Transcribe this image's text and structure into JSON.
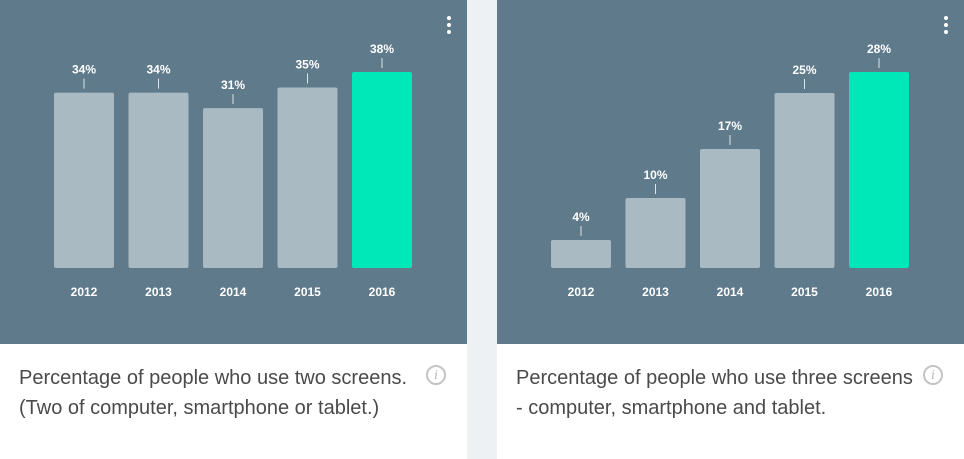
{
  "colors": {
    "chart_bg": "#5f7a8b",
    "bar": "#aabac3",
    "highlight_bar": "#00e8b7",
    "label_text": "#ffffff",
    "caption_text": "#4a4a4a"
  },
  "cards": [
    {
      "caption": "Percentage of people who use two screens. (Two of computer, smartphone or tablet.)",
      "menu_icon": "vertical-dots-icon",
      "info_icon": "info-icon"
    },
    {
      "caption": "Percentage of people who use three screens - computer, smartphone and tablet.",
      "menu_icon": "vertical-dots-icon",
      "info_icon": "info-icon"
    }
  ],
  "chart_data": [
    {
      "type": "bar",
      "categories": [
        "2012",
        "2013",
        "2014",
        "2015",
        "2016"
      ],
      "values": [
        34,
        34,
        31,
        35,
        38
      ],
      "value_labels": [
        "34%",
        "34%",
        "31%",
        "35%",
        "38%"
      ],
      "highlight_index": 4,
      "ylim": [
        0,
        38
      ],
      "grid": false,
      "legend": "none"
    },
    {
      "type": "bar",
      "categories": [
        "2012",
        "2013",
        "2014",
        "2015",
        "2016"
      ],
      "values": [
        4,
        10,
        17,
        25,
        28
      ],
      "value_labels": [
        "4%",
        "10%",
        "17%",
        "25%",
        "28%"
      ],
      "highlight_index": 4,
      "ylim": [
        0,
        28
      ],
      "grid": false,
      "legend": "none"
    }
  ]
}
